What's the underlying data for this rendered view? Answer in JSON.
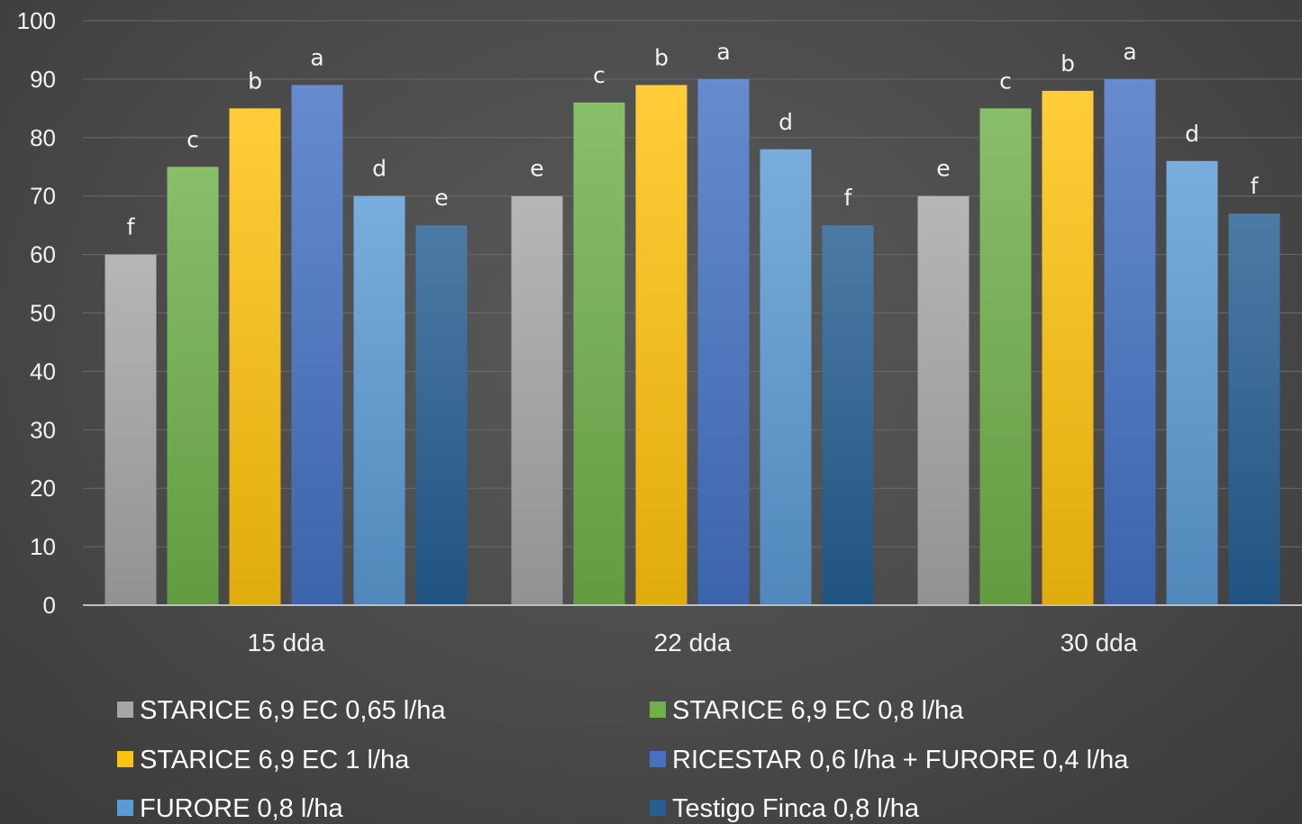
{
  "chart_data": {
    "type": "bar",
    "categories": [
      "15 dda",
      "22 dda",
      "30 dda"
    ],
    "ylim": [
      0,
      100
    ],
    "yticks": [
      0,
      10,
      20,
      30,
      40,
      50,
      60,
      70,
      80,
      90,
      100
    ],
    "grid": true,
    "legend_position": "bottom",
    "series": [
      {
        "name": "STARICE 6,9 EC 0,65 l/ha",
        "values": [
          60,
          70,
          70
        ],
        "labels": [
          "f",
          "e",
          "e"
        ],
        "color": "#a6a6a6"
      },
      {
        "name": "STARICE 6,9 EC 0,8 l/ha",
        "values": [
          75,
          86,
          85
        ],
        "labels": [
          "c",
          "c",
          "c"
        ],
        "color": "#6fb04a"
      },
      {
        "name": "STARICE 6,9 EC 1 l/ha",
        "values": [
          85,
          89,
          88
        ],
        "labels": [
          "b",
          "b",
          "b"
        ],
        "color": "#ffc20e"
      },
      {
        "name": "RICESTAR 0,6 l/ha + FURORE 0,4 l/ha",
        "values": [
          89,
          90,
          90
        ],
        "labels": [
          "a",
          "a",
          "a"
        ],
        "color": "#4472c4"
      },
      {
        "name": "FURORE 0,8 l/ha",
        "values": [
          70,
          78,
          76
        ],
        "labels": [
          "d",
          "d",
          "d"
        ],
        "color": "#5b9bd5"
      },
      {
        "name": "Testigo Finca 0,8 l/ha",
        "values": [
          65,
          65,
          67
        ],
        "labels": [
          "e",
          "f",
          "f"
        ],
        "color": "#255e91"
      }
    ]
  }
}
